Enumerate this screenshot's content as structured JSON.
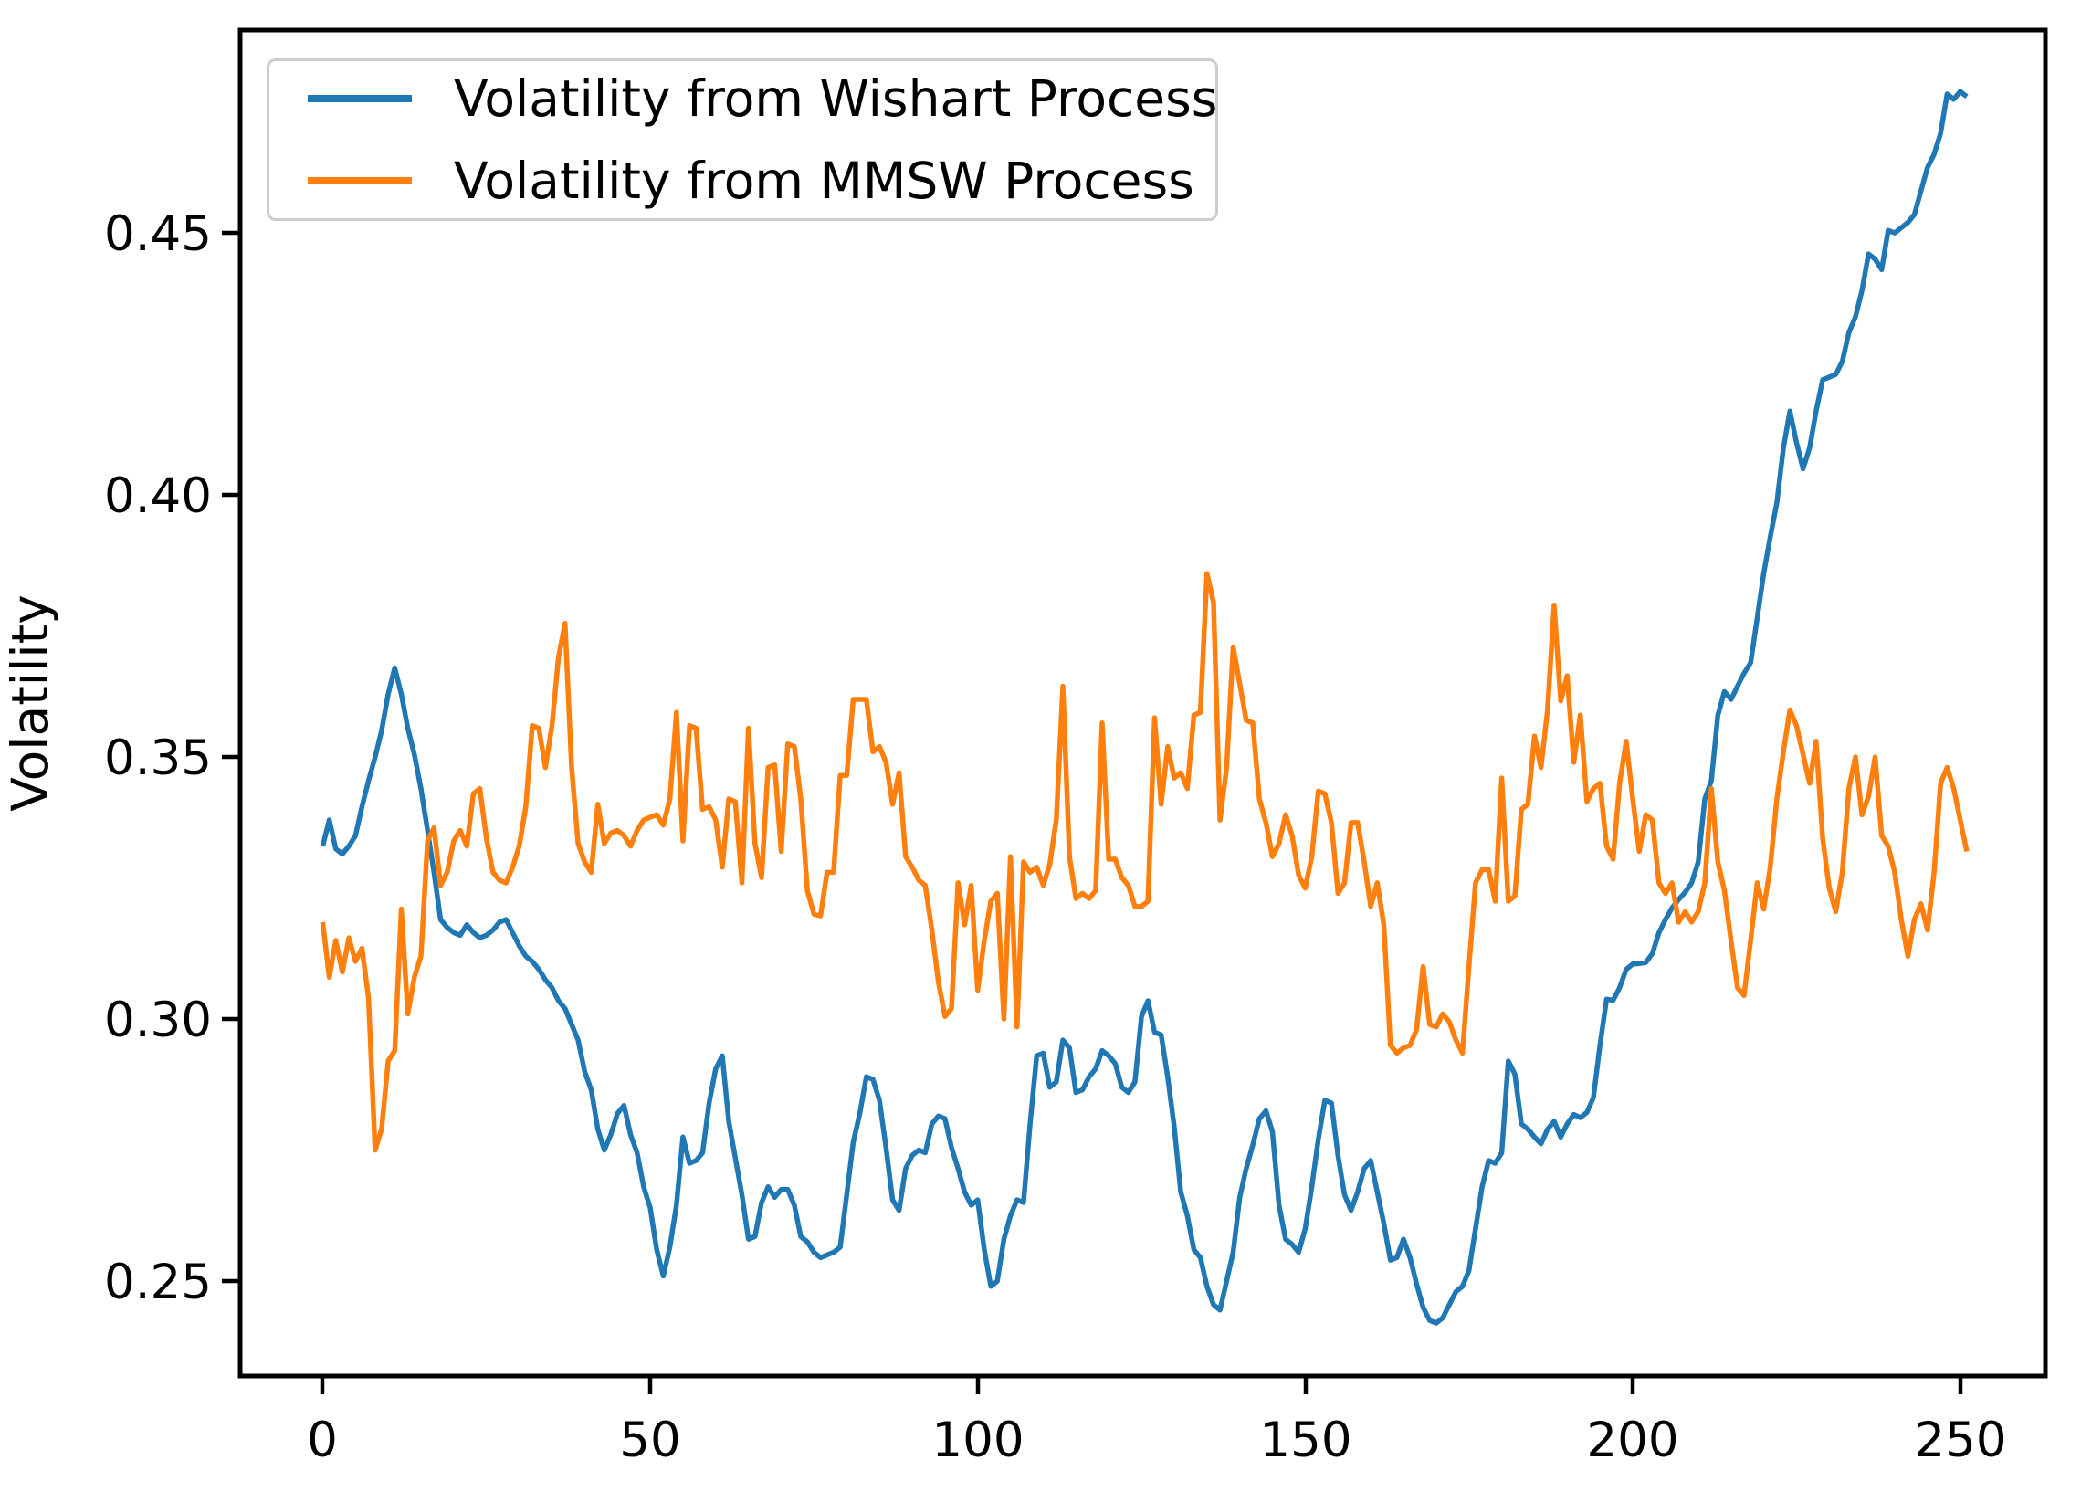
{
  "figure": {
    "background": "#ffffff"
  },
  "chart_data": {
    "type": "line",
    "title": "",
    "xlabel": "",
    "ylabel": "Volatility",
    "xlim": [
      -12.6,
      263.0
    ],
    "ylim": [
      0.2319,
      0.4887
    ],
    "grid": false,
    "legend_position": "upper-left",
    "xticks": [
      0,
      50,
      100,
      150,
      200,
      250
    ],
    "yticks": [
      0.25,
      0.3,
      0.35,
      0.4,
      0.45
    ],
    "xtick_labels": [
      "0",
      "50",
      "100",
      "150",
      "200",
      "250"
    ],
    "ytick_labels": [
      "0.25",
      "0.30",
      "0.35",
      "0.40",
      "0.45"
    ],
    "x_start": 0,
    "x_step": 1,
    "series": [
      {
        "name": "Volatility from Wishart Process",
        "color": "#1f77b4",
        "values": [
          0.333,
          0.338,
          0.3325,
          0.3315,
          0.333,
          0.335,
          0.3405,
          0.3455,
          0.35,
          0.355,
          0.362,
          0.367,
          0.362,
          0.3555,
          0.3505,
          0.344,
          0.336,
          0.328,
          0.319,
          0.3175,
          0.3165,
          0.316,
          0.318,
          0.3165,
          0.3155,
          0.316,
          0.317,
          0.3185,
          0.319,
          0.3165,
          0.314,
          0.312,
          0.311,
          0.3095,
          0.3075,
          0.306,
          0.3035,
          0.302,
          0.299,
          0.296,
          0.29,
          0.2865,
          0.279,
          0.275,
          0.278,
          0.282,
          0.2835,
          0.278,
          0.2745,
          0.268,
          0.264,
          0.256,
          0.251,
          0.2565,
          0.2645,
          0.2775,
          0.2725,
          0.273,
          0.2745,
          0.284,
          0.2905,
          0.293,
          0.2805,
          0.2735,
          0.2665,
          0.258,
          0.2585,
          0.265,
          0.268,
          0.266,
          0.2675,
          0.2675,
          0.2645,
          0.2585,
          0.2575,
          0.2555,
          0.2545,
          0.255,
          0.2555,
          0.2565,
          0.2665,
          0.2765,
          0.282,
          0.289,
          0.2885,
          0.2845,
          0.2755,
          0.2655,
          0.2635,
          0.2715,
          0.274,
          0.275,
          0.2745,
          0.28,
          0.2815,
          0.281,
          0.2755,
          0.2715,
          0.267,
          0.2645,
          0.2655,
          0.256,
          0.249,
          0.25,
          0.258,
          0.2625,
          0.2655,
          0.265,
          0.28,
          0.293,
          0.2935,
          0.287,
          0.288,
          0.296,
          0.2945,
          0.286,
          0.2865,
          0.289,
          0.2905,
          0.294,
          0.293,
          0.2915,
          0.287,
          0.286,
          0.288,
          0.3005,
          0.3035,
          0.2975,
          0.297,
          0.289,
          0.2795,
          0.267,
          0.2625,
          0.256,
          0.2545,
          0.249,
          0.2455,
          0.2445,
          0.25,
          0.2555,
          0.266,
          0.2715,
          0.276,
          0.281,
          0.2825,
          0.2785,
          0.2645,
          0.258,
          0.257,
          0.2555,
          0.26,
          0.268,
          0.277,
          0.2845,
          0.284,
          0.274,
          0.2665,
          0.2635,
          0.267,
          0.2715,
          0.273,
          0.267,
          0.261,
          0.254,
          0.2545,
          0.258,
          0.2545,
          0.2495,
          0.245,
          0.2425,
          0.242,
          0.243,
          0.2455,
          0.248,
          0.249,
          0.252,
          0.26,
          0.268,
          0.273,
          0.2725,
          0.2745,
          0.292,
          0.2895,
          0.28,
          0.279,
          0.2775,
          0.2762,
          0.279,
          0.2805,
          0.2775,
          0.28,
          0.2818,
          0.2812,
          0.2822,
          0.285,
          0.295,
          0.3038,
          0.3036,
          0.306,
          0.3095,
          0.3105,
          0.3106,
          0.3108,
          0.3125,
          0.3165,
          0.319,
          0.3212,
          0.3228,
          0.3242,
          0.326,
          0.33,
          0.342,
          0.3455,
          0.358,
          0.3625,
          0.361,
          0.3635,
          0.366,
          0.368,
          0.3765,
          0.385,
          0.392,
          0.3985,
          0.409,
          0.416,
          0.41,
          0.405,
          0.409,
          0.416,
          0.422,
          0.4225,
          0.423,
          0.4255,
          0.431,
          0.434,
          0.439,
          0.446,
          0.445,
          0.443,
          0.4505,
          0.45,
          0.451,
          0.452,
          0.4535,
          0.458,
          0.4625,
          0.465,
          0.469,
          0.4765,
          0.4755,
          0.477,
          0.476
        ]
      },
      {
        "name": "Volatility from MMSW Process",
        "color": "#ff7f0e",
        "values": [
          0.3185,
          0.308,
          0.315,
          0.309,
          0.3155,
          0.311,
          0.3135,
          0.304,
          0.275,
          0.279,
          0.292,
          0.294,
          0.321,
          0.301,
          0.308,
          0.312,
          0.334,
          0.3365,
          0.3255,
          0.328,
          0.334,
          0.336,
          0.333,
          0.343,
          0.344,
          0.3345,
          0.328,
          0.3265,
          0.326,
          0.329,
          0.333,
          0.3405,
          0.356,
          0.3555,
          0.348,
          0.356,
          0.369,
          0.3755,
          0.348,
          0.3335,
          0.33,
          0.328,
          0.341,
          0.3335,
          0.3355,
          0.336,
          0.335,
          0.333,
          0.336,
          0.338,
          0.3385,
          0.339,
          0.337,
          0.342,
          0.3585,
          0.334,
          0.356,
          0.3555,
          0.34,
          0.3405,
          0.338,
          0.329,
          0.342,
          0.3415,
          0.326,
          0.3555,
          0.3335,
          0.327,
          0.348,
          0.3485,
          0.332,
          0.3525,
          0.352,
          0.342,
          0.3245,
          0.32,
          0.3197,
          0.328,
          0.328,
          0.3465,
          0.3465,
          0.361,
          0.361,
          0.361,
          0.351,
          0.352,
          0.349,
          0.341,
          0.347,
          0.331,
          0.329,
          0.3265,
          0.3255,
          0.317,
          0.307,
          0.3005,
          0.302,
          0.326,
          0.318,
          0.3255,
          0.3055,
          0.315,
          0.3225,
          0.324,
          0.3,
          0.331,
          0.2985,
          0.33,
          0.328,
          0.329,
          0.3255,
          0.3295,
          0.338,
          0.3635,
          0.331,
          0.323,
          0.324,
          0.323,
          0.3245,
          0.3565,
          0.3305,
          0.3305,
          0.327,
          0.3255,
          0.3215,
          0.3215,
          0.3225,
          0.3575,
          0.341,
          0.352,
          0.346,
          0.347,
          0.344,
          0.358,
          0.3585,
          0.385,
          0.3795,
          0.338,
          0.348,
          0.371,
          0.364,
          0.357,
          0.3565,
          0.342,
          0.3375,
          0.331,
          0.3335,
          0.339,
          0.335,
          0.3275,
          0.325,
          0.331,
          0.3435,
          0.343,
          0.3375,
          0.324,
          0.326,
          0.3375,
          0.3375,
          0.33,
          0.3215,
          0.326,
          0.318,
          0.295,
          0.2935,
          0.2945,
          0.295,
          0.298,
          0.31,
          0.299,
          0.2985,
          0.301,
          0.2995,
          0.296,
          0.2935,
          0.31,
          0.326,
          0.3285,
          0.3285,
          0.3225,
          0.346,
          0.3225,
          0.3235,
          0.34,
          0.341,
          0.354,
          0.348,
          0.359,
          0.379,
          0.3607,
          0.3655,
          0.349,
          0.358,
          0.3415,
          0.344,
          0.345,
          0.333,
          0.3305,
          0.345,
          0.353,
          0.342,
          0.332,
          0.339,
          0.338,
          0.326,
          0.324,
          0.326,
          0.3185,
          0.3205,
          0.3185,
          0.3205,
          0.326,
          0.344,
          0.33,
          0.3245,
          0.315,
          0.306,
          0.3045,
          0.315,
          0.326,
          0.321,
          0.329,
          0.342,
          0.351,
          0.359,
          0.356,
          0.3505,
          0.345,
          0.353,
          0.3345,
          0.325,
          0.3205,
          0.328,
          0.344,
          0.35,
          0.339,
          0.3425,
          0.35,
          0.335,
          0.333,
          0.328,
          0.319,
          0.312,
          0.319,
          0.322,
          0.317,
          0.328,
          0.345,
          0.348,
          0.344,
          0.338,
          0.332
        ]
      }
    ]
  }
}
